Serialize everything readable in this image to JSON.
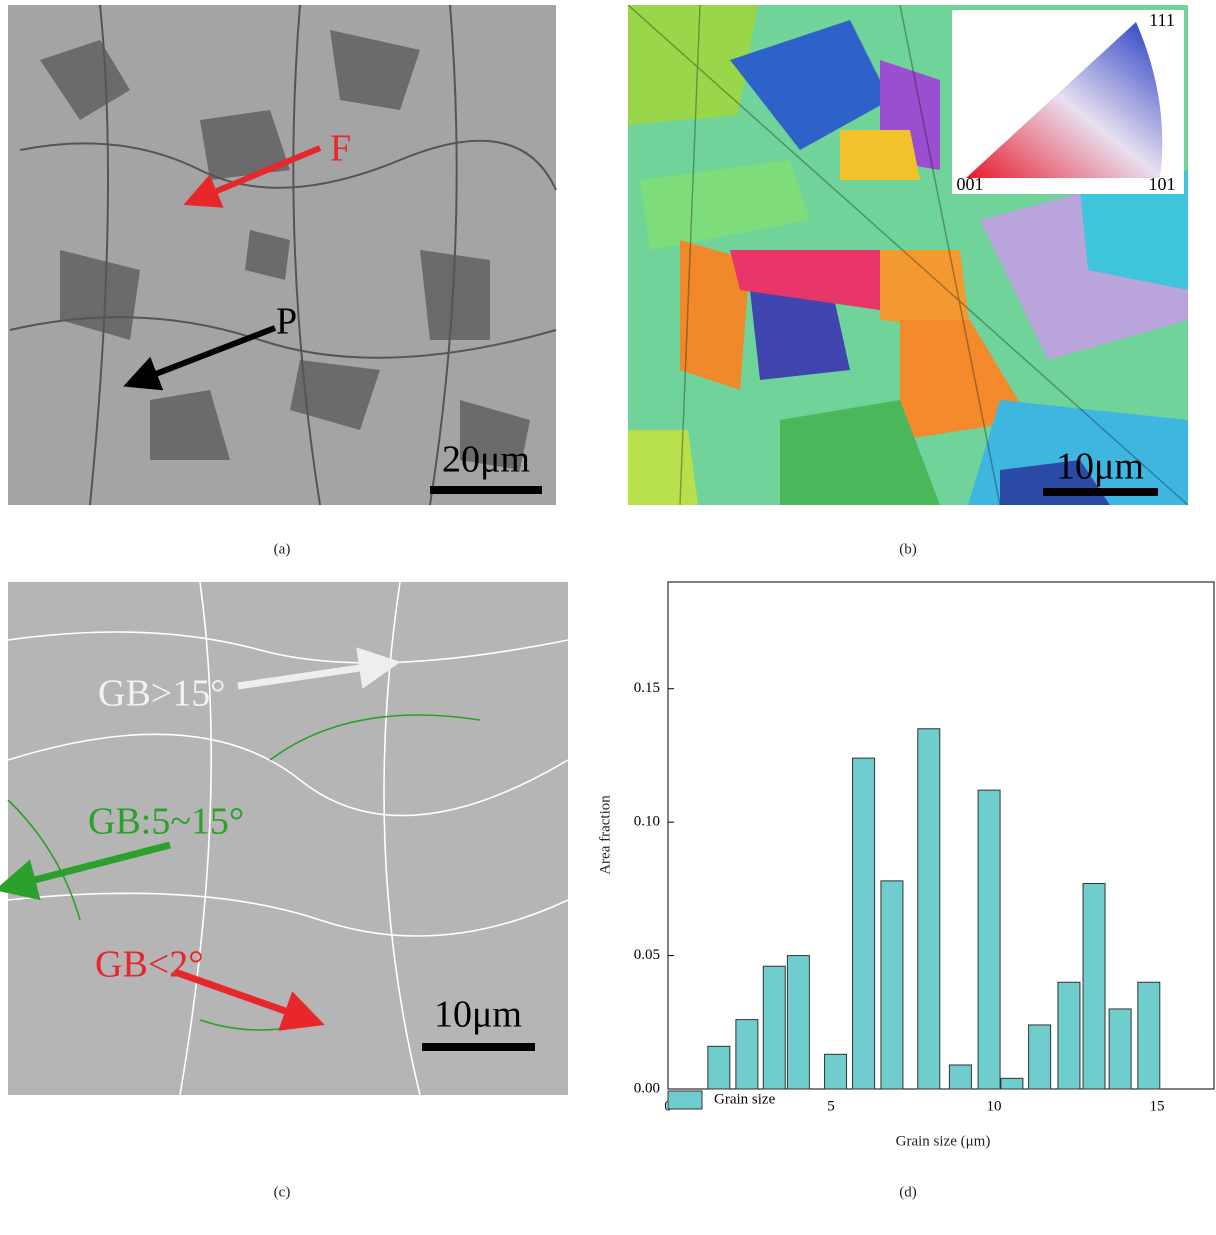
{
  "panels": [
    {
      "label": "(a)",
      "annotations": [
        "F",
        "P"
      ],
      "scale_bar": "20μm"
    },
    {
      "label": "(b)",
      "scale_bar": "10μm",
      "legend_corners": [
        "111",
        "001",
        "101"
      ]
    },
    {
      "label": "(c)",
      "annotations": [
        "GB>15°",
        "GB:5~15°",
        "GB<2°"
      ],
      "scale_bar": "10μm"
    },
    {
      "label": "(d)"
    }
  ],
  "chart_data": {
    "type": "bar",
    "xlabel": "Grain size (μm)",
    "ylabel": "Area fraction",
    "x": [
      1.56,
      2.42,
      3.26,
      4.0,
      5.14,
      6.0,
      6.87,
      8.0,
      8.97,
      9.85,
      10.55,
      11.4,
      12.3,
      13.07,
      13.87,
      14.75
    ],
    "series": [
      {
        "name": "Grain size",
        "color": "#6fcdcd",
        "values": [
          0.016,
          0.026,
          0.046,
          0.05,
          0.013,
          0.124,
          0.078,
          0.135,
          0.009,
          0.112,
          0.004,
          0.024,
          0.04,
          0.077,
          0.03,
          0.04
        ]
      }
    ],
    "xlim": [
      0,
      16.75
    ],
    "ylim": [
      0,
      0.19
    ],
    "xticks": [
      0,
      5,
      10,
      15
    ],
    "yticks": [
      {
        "value": 0,
        "label": "0.00"
      },
      {
        "value": 0.05,
        "label": "0.05"
      },
      {
        "value": 0.1,
        "label": "0.10"
      },
      {
        "value": 0.15,
        "label": "0.15"
      }
    ]
  }
}
